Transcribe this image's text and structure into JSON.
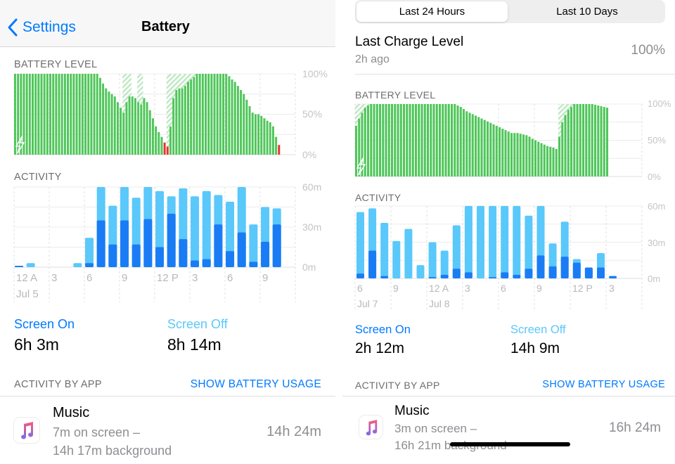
{
  "left": {
    "nav": {
      "back_label": "Settings",
      "title": "Battery"
    },
    "battery_section": "BATTERY LEVEL",
    "activity_section": "ACTIVITY",
    "battery_axis": [
      "100%",
      "50%",
      "0%"
    ],
    "activity_axis": [
      "60m",
      "30m",
      "0m"
    ],
    "time_ticks": [
      "12 A",
      "3",
      "6",
      "9",
      "12 P",
      "3",
      "6",
      "9"
    ],
    "date_ticks": [
      "Jul 5"
    ],
    "screen_on": {
      "label": "Screen On",
      "value": "6h 3m"
    },
    "screen_off": {
      "label": "Screen Off",
      "value": "8h 14m"
    },
    "activity_by_app": "ACTIVITY BY APP",
    "show_battery_usage": "SHOW BATTERY USAGE",
    "app": {
      "name": "Music",
      "line1": "7m on screen –",
      "line2": "14h 17m background",
      "total": "14h 24m",
      "icon": "music-note-icon"
    }
  },
  "right": {
    "tabs": [
      {
        "label": "Last 24 Hours",
        "selected": true
      },
      {
        "label": "Last 10 Days",
        "selected": false
      }
    ],
    "last_charge": {
      "label": "Last Charge Level",
      "ago": "2h ago",
      "value": "100%"
    },
    "battery_section": "BATTERY LEVEL",
    "activity_section": "ACTIVITY",
    "battery_axis": [
      "100%",
      "50%",
      "0%"
    ],
    "activity_axis": [
      "60m",
      "30m",
      "0m"
    ],
    "time_ticks": [
      "6",
      "9",
      "12 A",
      "3",
      "6",
      "9",
      "12 P",
      "3"
    ],
    "date_ticks": [
      "Jul 7",
      "Jul 8"
    ],
    "screen_on": {
      "label": "Screen On",
      "value": "2h 12m"
    },
    "screen_off": {
      "label": "Screen Off",
      "value": "14h 9m"
    },
    "activity_by_app": "ACTIVITY BY APP",
    "show_battery_usage": "SHOW BATTERY USAGE",
    "app": {
      "name": "Music",
      "line1": "3m on screen –",
      "line2": "16h 21m background",
      "total": "16h 24m",
      "icon": "music-note-icon"
    }
  },
  "colors": {
    "accent": "#007aff",
    "screen_on": "#1a7cf5",
    "screen_off": "#5ac8fa",
    "battery": "#4fc65a",
    "battery_low": "#e5352d",
    "charging_hatch": "#bfe8c2"
  },
  "chart_data": [
    {
      "id": "left-battery",
      "type": "bar",
      "ylabel": "",
      "ylim": [
        0,
        100
      ],
      "low_threshold": 20,
      "values": [
        100,
        100,
        100,
        100,
        100,
        100,
        100,
        100,
        100,
        100,
        100,
        100,
        100,
        100,
        100,
        100,
        100,
        100,
        100,
        100,
        100,
        100,
        100,
        100,
        100,
        100,
        100,
        100,
        100,
        95,
        88,
        82,
        78,
        75,
        72,
        65,
        58,
        52,
        65,
        72,
        72,
        70,
        65,
        62,
        70,
        65,
        55,
        45,
        35,
        28,
        22,
        15,
        10,
        35,
        70,
        80,
        82,
        82,
        85,
        90,
        93,
        96,
        100,
        100,
        100,
        100,
        100,
        100,
        100,
        100,
        100,
        100,
        100,
        97,
        93,
        90,
        85,
        80,
        75,
        68,
        60,
        52,
        50,
        50,
        48,
        45,
        42,
        40,
        35,
        22,
        12
      ],
      "charging_ranges": [
        [
          37,
          39
        ],
        [
          42,
          43
        ],
        [
          52,
          62
        ]
      ]
    },
    {
      "id": "left-activity",
      "type": "bar",
      "stacked": true,
      "ylim": [
        0,
        60
      ],
      "categories": [
        "12A",
        "1",
        "2",
        "3",
        "4",
        "5",
        "6",
        "7",
        "8",
        "9",
        "10",
        "11",
        "12P",
        "1",
        "2",
        "3",
        "4",
        "5",
        "6",
        "7",
        "8",
        "9",
        "10"
      ],
      "series": [
        {
          "name": "Screen On",
          "values": [
            1,
            0,
            0,
            0,
            0,
            0,
            3,
            35,
            17,
            35,
            17,
            36,
            15,
            40,
            21,
            5,
            6,
            32,
            12,
            26,
            4,
            19,
            32
          ]
        },
        {
          "name": "Screen Off",
          "values": [
            0,
            3,
            0,
            0,
            0,
            3,
            19,
            25,
            29,
            25,
            35,
            24,
            42,
            13,
            38,
            48,
            51,
            22,
            37,
            34,
            28,
            26,
            12
          ]
        }
      ]
    },
    {
      "id": "right-battery",
      "type": "bar",
      "ylim": [
        0,
        100
      ],
      "low_threshold": 20,
      "values": [
        70,
        80,
        88,
        95,
        98,
        100,
        100,
        100,
        100,
        100,
        100,
        100,
        100,
        100,
        100,
        100,
        100,
        100,
        100,
        100,
        100,
        100,
        100,
        100,
        100,
        100,
        100,
        100,
        100,
        100,
        100,
        100,
        100,
        100,
        98,
        96,
        93,
        90,
        88,
        86,
        84,
        82,
        80,
        78,
        76,
        74,
        72,
        70,
        68,
        66,
        64,
        62,
        60,
        60,
        60,
        59,
        58,
        57,
        55,
        52,
        50,
        48,
        46,
        44,
        42,
        41,
        40,
        38,
        55,
        75,
        85,
        92,
        96,
        100,
        100,
        100,
        100,
        100,
        100,
        100,
        99,
        98,
        97,
        96,
        95
      ],
      "charging_ranges": [
        [
          0,
          4
        ],
        [
          68,
          72
        ]
      ]
    },
    {
      "id": "right-activity",
      "type": "bar",
      "stacked": true,
      "ylim": [
        0,
        60
      ],
      "categories": [
        "6P",
        "7",
        "8",
        "9",
        "10",
        "11",
        "12A",
        "1",
        "2",
        "3",
        "4",
        "5",
        "6",
        "7",
        "8",
        "9",
        "10",
        "11",
        "12P",
        "1",
        "2",
        "3"
      ],
      "series": [
        {
          "name": "Screen On",
          "values": [
            4,
            23,
            2,
            0,
            0,
            0,
            1,
            3,
            8,
            5,
            0,
            1,
            5,
            3,
            8,
            19,
            10,
            18,
            13,
            9,
            9,
            2
          ]
        },
        {
          "name": "Screen Off",
          "values": [
            51,
            35,
            44,
            31,
            41,
            11,
            29,
            20,
            36,
            55,
            60,
            59,
            55,
            57,
            44,
            41,
            19,
            29,
            3,
            0,
            12,
            0
          ]
        }
      ]
    }
  ]
}
